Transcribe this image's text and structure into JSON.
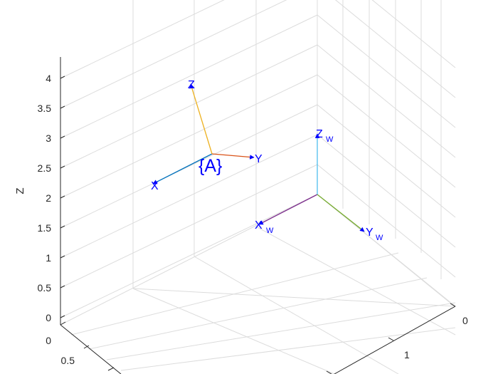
{
  "chart_data": {
    "type": "3d-coordinate-frames",
    "zlabel": "Z",
    "zlim": [
      0,
      4.3
    ],
    "zticks": [
      "0",
      "0.5",
      "1",
      "1.5",
      "2",
      "2.5",
      "3",
      "3.5",
      "4"
    ],
    "xticks": [
      "0",
      "0.5"
    ],
    "yticks": [
      "0",
      "1"
    ],
    "grid": true,
    "frames": [
      {
        "name": "{A}",
        "axes": [
          {
            "label": "X",
            "sub": "",
            "color": "#0072BD"
          },
          {
            "label": "Y",
            "sub": "",
            "color": "#D95319"
          },
          {
            "label": "Z",
            "sub": "",
            "color": "#EDB120"
          }
        ],
        "label_color": "#0000FF"
      },
      {
        "name": "",
        "axes": [
          {
            "label": "X",
            "sub": "W",
            "color": "#7E2F8E"
          },
          {
            "label": "Y",
            "sub": "W",
            "color": "#77AC30"
          },
          {
            "label": "Z",
            "sub": "W",
            "color": "#4DBEEE"
          }
        ],
        "label_color": "#0000FF"
      }
    ]
  }
}
